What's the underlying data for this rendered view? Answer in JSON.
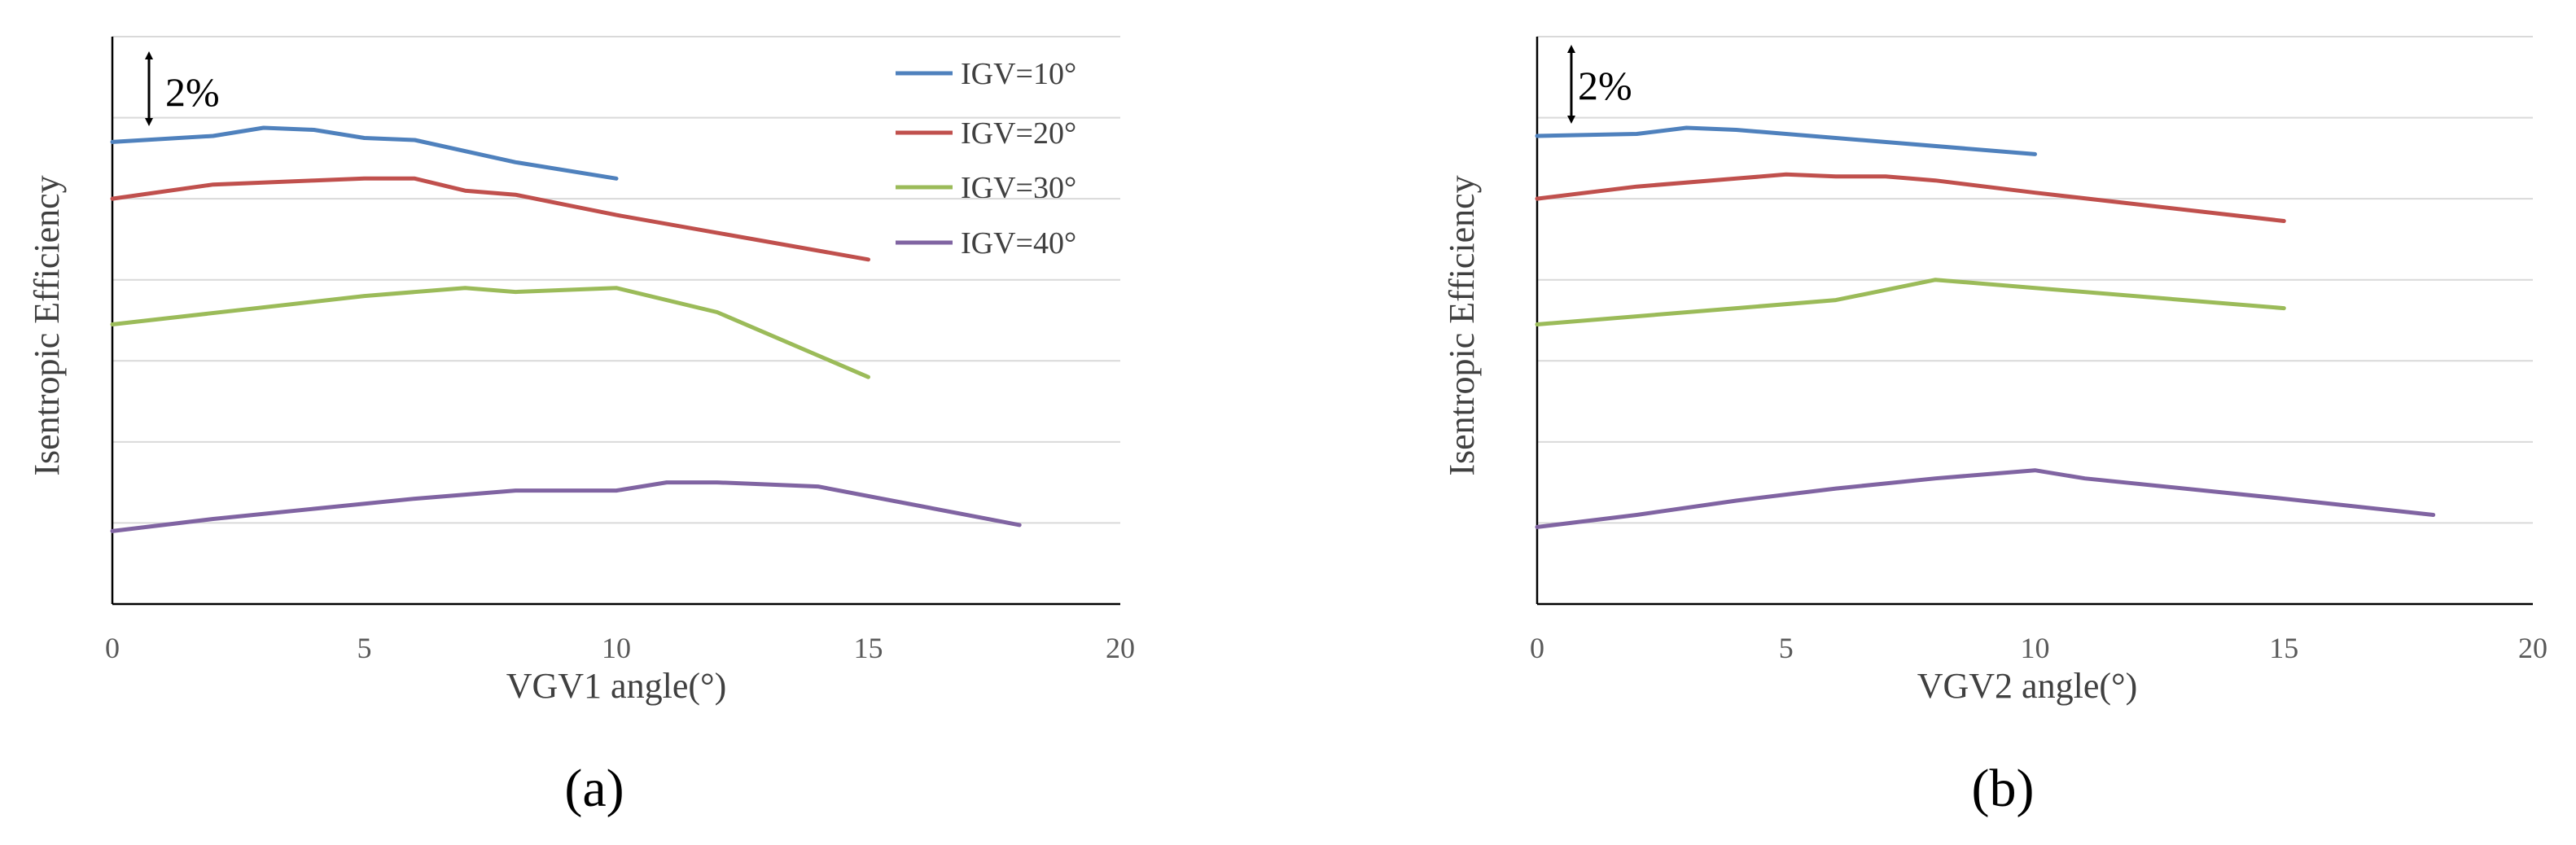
{
  "chart_data": [
    {
      "type": "line",
      "caption": "(a)",
      "xlabel": "VGV1 angle(°)",
      "ylabel": "Isentropic Efficiency",
      "xlim": [
        0,
        20
      ],
      "xticks": [
        "0",
        "5",
        "10",
        "15",
        "20"
      ],
      "ylim": [
        0,
        14
      ],
      "ytick_step": 2,
      "grid": true,
      "scale_label": "2%",
      "legend_position": "top-right",
      "series": [
        {
          "name": "IGV=10°",
          "color": "#4F81BD",
          "x": [
            0,
            2,
            3,
            4,
            5,
            6,
            8,
            10
          ],
          "y": [
            11.4,
            11.55,
            11.75,
            11.7,
            11.5,
            11.45,
            10.9,
            10.5
          ]
        },
        {
          "name": "IGV=20°",
          "color": "#C0504D",
          "x": [
            0,
            2,
            4,
            5,
            6,
            7,
            8,
            10,
            15
          ],
          "y": [
            10.0,
            10.35,
            10.45,
            10.5,
            10.5,
            10.2,
            10.1,
            9.6,
            8.5
          ]
        },
        {
          "name": "IGV=30°",
          "color": "#9BBB59",
          "x": [
            0,
            5,
            7,
            8,
            10,
            12,
            15
          ],
          "y": [
            6.9,
            7.6,
            7.8,
            7.7,
            7.8,
            7.2,
            5.6
          ]
        },
        {
          "name": "IGV=40°",
          "color": "#8064A2",
          "x": [
            0,
            2,
            4,
            6,
            8,
            10,
            11,
            12,
            14,
            18
          ],
          "y": [
            1.8,
            2.1,
            2.35,
            2.6,
            2.8,
            2.8,
            3.0,
            3.0,
            2.9,
            1.95
          ]
        }
      ]
    },
    {
      "type": "line",
      "caption": "(b)",
      "xlabel": "VGV2 angle(°)",
      "ylabel": "Isentropic Efficiency",
      "xlim": [
        0,
        20
      ],
      "xticks": [
        "0",
        "5",
        "10",
        "15",
        "20"
      ],
      "ylim": [
        0,
        14
      ],
      "ytick_step": 2,
      "grid": true,
      "scale_label": "2%",
      "series": [
        {
          "name": "IGV=10°",
          "color": "#4F81BD",
          "x": [
            0,
            2,
            3,
            4,
            5,
            10
          ],
          "y": [
            11.55,
            11.6,
            11.75,
            11.7,
            11.6,
            11.1
          ]
        },
        {
          "name": "IGV=20°",
          "color": "#C0504D",
          "x": [
            0,
            2,
            4,
            5,
            6,
            7,
            8,
            10,
            15
          ],
          "y": [
            10.0,
            10.3,
            10.5,
            10.6,
            10.55,
            10.55,
            10.45,
            10.15,
            9.45
          ]
        },
        {
          "name": "IGV=30°",
          "color": "#9BBB59",
          "x": [
            0,
            4,
            6,
            8,
            10,
            15
          ],
          "y": [
            6.9,
            7.3,
            7.5,
            8.0,
            7.8,
            7.3
          ]
        },
        {
          "name": "IGV=40°",
          "color": "#8064A2",
          "x": [
            0,
            2,
            4,
            6,
            8,
            10,
            11,
            15,
            18
          ],
          "y": [
            1.9,
            2.2,
            2.55,
            2.85,
            3.1,
            3.3,
            3.1,
            2.6,
            2.2
          ]
        }
      ]
    }
  ]
}
